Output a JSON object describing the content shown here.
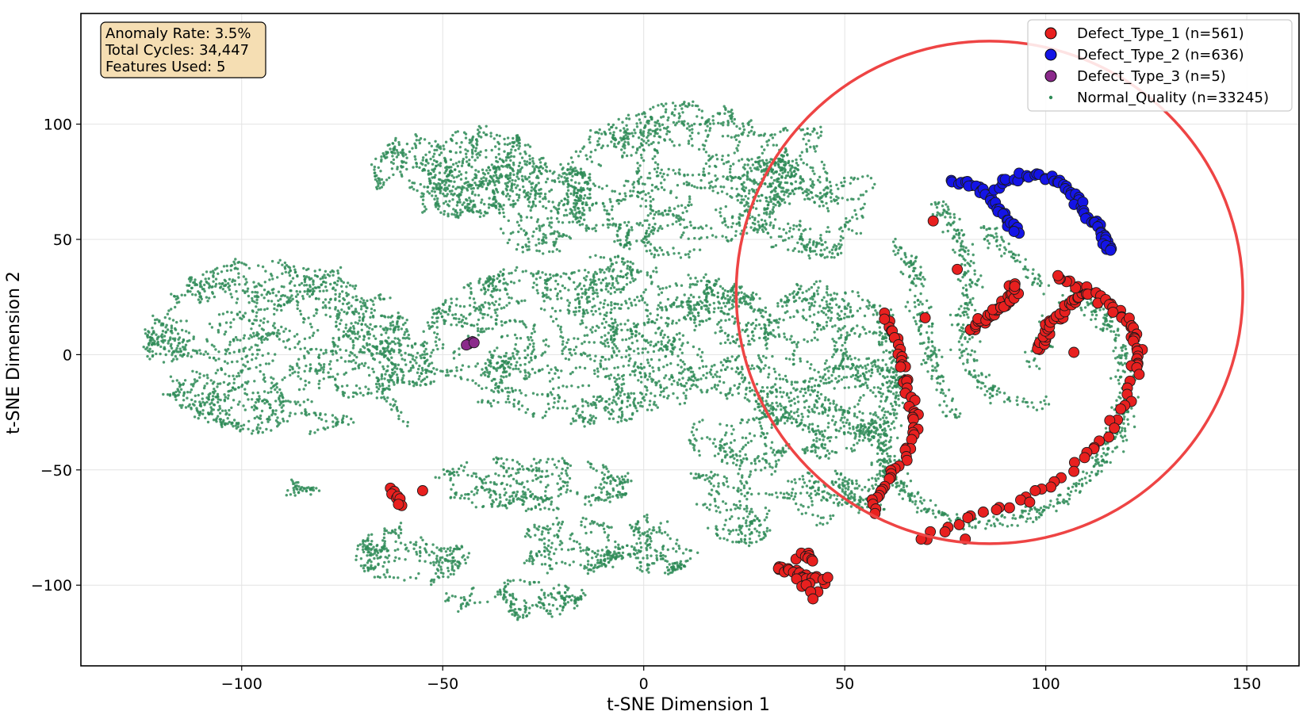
{
  "chart_data": {
    "type": "scatter",
    "title": "",
    "xlabel": "t-SNE Dimension 1",
    "ylabel": "t-SNE Dimension 2",
    "xlim": [
      -140,
      163
    ],
    "ylim": [
      -135,
      148
    ],
    "xticks": [
      -100,
      -50,
      0,
      50,
      100,
      150
    ],
    "yticks": [
      -100,
      -50,
      0,
      50,
      100
    ],
    "xtick_labels": [
      "−100",
      "−50",
      "0",
      "50",
      "100",
      "150"
    ],
    "ytick_labels": [
      "−100",
      "−50",
      "0",
      "50",
      "100"
    ],
    "grid": true,
    "legend_position": "top-right",
    "colors": {
      "normal": "#2e8b57",
      "defect1": "#e8201f",
      "defect2": "#1414e6",
      "defect3": "#8b2a8b",
      "circle": "#ee4444",
      "stats_box_fill": "#f5deb3"
    },
    "series": [
      {
        "name": "Defect_Type_1 (n=561)",
        "marker": "circle-large",
        "color": "#e8201f",
        "clusters": [
          {
            "kind": "line",
            "pts": [
              [
                82,
                12
              ],
              [
                86,
                17
              ],
              [
                90,
                23
              ],
              [
                93,
                30
              ]
            ],
            "n": 40
          },
          {
            "kind": "line",
            "pts": [
              [
                98,
                2
              ],
              [
                101,
                12
              ],
              [
                105,
                20
              ],
              [
                110,
                27
              ],
              [
                103,
                34
              ]
            ],
            "n": 45
          },
          {
            "kind": "line",
            "pts": [
              [
                110,
                28
              ],
              [
                116,
                22
              ],
              [
                121,
                13
              ],
              [
                123,
                2
              ],
              [
                122,
                -8
              ]
            ],
            "n": 35
          },
          {
            "kind": "line",
            "pts": [
              [
                121,
                -12
              ],
              [
                119,
                -25
              ],
              [
                116,
                -32
              ],
              [
                110,
                -45
              ],
              [
                100,
                -58
              ],
              [
                90,
                -65
              ],
              [
                75,
                -75
              ],
              [
                70,
                -80
              ]
            ],
            "n": 35
          },
          {
            "kind": "line",
            "pts": [
              [
                60,
                17
              ],
              [
                62,
                8
              ],
              [
                64,
                -2
              ],
              [
                66,
                -15
              ],
              [
                68,
                -27
              ],
              [
                67,
                -37
              ],
              [
                64,
                -45
              ],
              [
                61,
                -53
              ],
              [
                58,
                -62
              ],
              [
                57,
                -69
              ]
            ],
            "n": 55
          },
          {
            "kind": "line",
            "pts": [
              [
                33,
                -92
              ],
              [
                37,
                -94
              ],
              [
                41,
                -97
              ],
              [
                45,
                -97
              ]
            ],
            "n": 22
          },
          {
            "kind": "line",
            "pts": [
              [
                38,
                -86
              ],
              [
                40,
                -87
              ],
              [
                42,
                -90
              ]
            ],
            "n": 8
          },
          {
            "kind": "line",
            "pts": [
              [
                38,
                -98
              ],
              [
                41,
                -101
              ],
              [
                42,
                -104
              ]
            ],
            "n": 8
          },
          {
            "kind": "line",
            "pts": [
              [
                -64,
                -58
              ],
              [
                -61,
                -62
              ],
              [
                -61,
                -66
              ]
            ],
            "n": 8
          },
          {
            "kind": "pts",
            "pts": [
              [
                72,
                58
              ],
              [
                78,
                37
              ],
              [
                70,
                16
              ],
              [
                80,
                -80
              ],
              [
                69,
                -80
              ],
              [
                107,
                1
              ],
              [
                96,
                -64
              ],
              [
                -55,
                -59
              ]
            ]
          }
        ]
      },
      {
        "name": "Defect_Type_2 (n=636)",
        "marker": "circle-large",
        "color": "#1414e6",
        "clusters": [
          {
            "kind": "line",
            "pts": [
              [
                76,
                75
              ],
              [
                82,
                74
              ],
              [
                85,
                70
              ],
              [
                88,
                64
              ],
              [
                91,
                57
              ],
              [
                93,
                53
              ]
            ],
            "n": 35
          },
          {
            "kind": "line",
            "pts": [
              [
                88,
                72
              ],
              [
                92,
                77
              ],
              [
                97,
                78
              ],
              [
                102,
                76
              ],
              [
                106,
                71
              ],
              [
                109,
                63
              ],
              [
                113,
                55
              ],
              [
                115,
                49
              ],
              [
                116,
                44
              ]
            ],
            "n": 60
          }
        ]
      },
      {
        "name": "Defect_Type_3 (n=5)",
        "marker": "circle-large",
        "color": "#8b2a8b",
        "points": [
          [
            -43.6,
            4.6
          ],
          [
            -43.2,
            5.2
          ],
          [
            -42.6,
            5.6
          ],
          [
            -44.1,
            4.2
          ],
          [
            -42.2,
            5.2
          ]
        ]
      },
      {
        "name": "Normal_Quality (n=33245)",
        "marker": "dot",
        "color": "#2e8b57",
        "blobs": [
          {
            "cx": -91,
            "cy": 4,
            "rx": 33,
            "ry": 40,
            "n": 1500
          },
          {
            "cx": -60,
            "cy": -10,
            "rx": 8,
            "ry": 22,
            "n": 150
          },
          {
            "cx": -85,
            "cy": -58,
            "rx": 4,
            "ry": 6,
            "n": 30
          },
          {
            "cx": -46,
            "cy": 80,
            "rx": 22,
            "ry": 21,
            "n": 680
          },
          {
            "cx": -26,
            "cy": 68,
            "rx": 13,
            "ry": 26,
            "n": 360
          },
          {
            "cx": 9,
            "cy": 76,
            "rx": 30,
            "ry": 34,
            "n": 980
          },
          {
            "cx": 41,
            "cy": 70,
            "rx": 17,
            "ry": 30,
            "n": 460
          },
          {
            "cx": -10,
            "cy": 6,
            "rx": 45,
            "ry": 37,
            "n": 1750
          },
          {
            "cx": -28,
            "cy": -56,
            "rx": 26,
            "ry": 12,
            "n": 380
          },
          {
            "cx": -58,
            "cy": -87,
            "rx": 14,
            "ry": 14,
            "n": 250
          },
          {
            "cx": -18,
            "cy": -83,
            "rx": 14,
            "ry": 13,
            "n": 230
          },
          {
            "cx": 4,
            "cy": -82,
            "rx": 9,
            "ry": 14,
            "n": 170
          },
          {
            "cx": -32,
            "cy": -106,
            "rx": 18,
            "ry": 9,
            "n": 200
          },
          {
            "cx": 24,
            "cy": -42,
            "rx": 13,
            "ry": 42,
            "n": 460
          },
          {
            "cx": 46,
            "cy": -5,
            "rx": 18,
            "ry": 40,
            "n": 820
          },
          {
            "cx": 45,
            "cy": -62,
            "rx": 12,
            "ry": 12,
            "n": 180
          }
        ],
        "arcs": [
          {
            "pts": [
              [
                68,
                24
              ],
              [
                70,
                10
              ],
              [
                72,
                -5
              ],
              [
                74,
                -15
              ],
              [
                77,
                -27
              ]
            ],
            "n": 120
          },
          {
            "pts": [
              [
                62,
                48
              ],
              [
                66,
                40
              ],
              [
                68,
                30
              ]
            ],
            "n": 60
          },
          {
            "pts": [
              [
                73,
                65
              ],
              [
                79,
                50
              ],
              [
                81,
                35
              ],
              [
                80,
                18
              ],
              [
                80,
                0
              ],
              [
                83,
                -10
              ],
              [
                88,
                -18
              ],
              [
                95,
                -22
              ],
              [
                100,
                -20
              ]
            ],
            "n": 250
          },
          {
            "pts": [
              [
                85,
                55
              ],
              [
                91,
                44
              ],
              [
                96,
                35
              ],
              [
                100,
                28
              ]
            ],
            "n": 70
          },
          {
            "pts": [
              [
                56,
                -28
              ],
              [
                60,
                -40
              ],
              [
                63,
                -55
              ],
              [
                68,
                -65
              ],
              [
                78,
                -72
              ],
              [
                92,
                -72
              ],
              [
                104,
                -64
              ],
              [
                112,
                -50
              ],
              [
                118,
                -36
              ],
              [
                120,
                -20
              ],
              [
                120,
                -5
              ],
              [
                117,
                10
              ],
              [
                112,
                20
              ],
              [
                107,
                28
              ]
            ],
            "n": 550
          },
          {
            "pts": [
              [
                60,
                18
              ],
              [
                62,
                5
              ],
              [
                63,
                -10
              ],
              [
                62,
                -25
              ],
              [
                60,
                -40
              ],
              [
                58,
                -55
              ],
              [
                58,
                -67
              ]
            ],
            "n": 180
          },
          {
            "pts": [
              [
                97,
                -5
              ],
              [
                100,
                8
              ],
              [
                103,
                18
              ],
              [
                107,
                26
              ]
            ],
            "n": 80
          }
        ]
      }
    ]
  },
  "stats_box": {
    "line1": "Anomaly Rate: 3.5%",
    "line2": "Total Cycles: 34,447",
    "line3": "Features Used: 5"
  },
  "annotation_circle": {
    "cx": 86,
    "cy": 27,
    "rx_data": 63,
    "ry_data": 109
  }
}
